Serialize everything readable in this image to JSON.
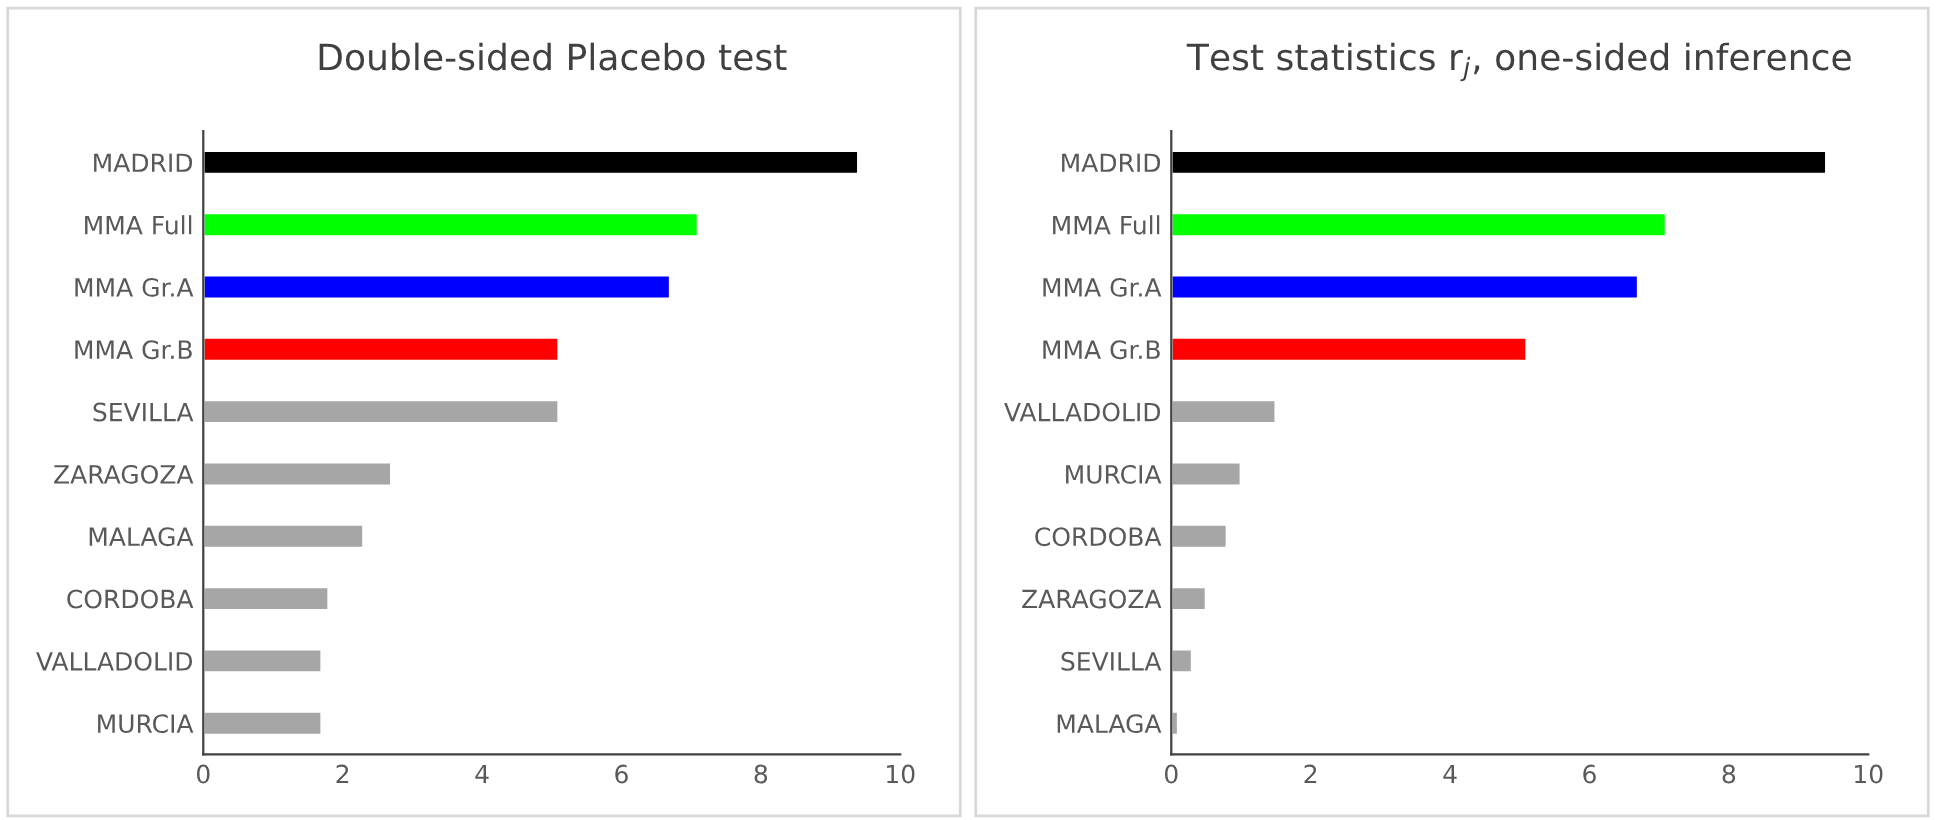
{
  "chart_data": [
    {
      "type": "bar",
      "orientation": "horizontal",
      "title": "Double-sided Placebo test",
      "categories": [
        "MADRID",
        "MMA Full",
        "MMA Gr.A",
        "MMA Gr.B",
        "SEVILLA",
        "ZARAGOZA",
        "MALAGA",
        "CORDOBA",
        "VALLADOLID",
        "MURCIA"
      ],
      "values": [
        9.4,
        7.1,
        6.7,
        5.1,
        5.1,
        2.7,
        2.3,
        1.8,
        1.7,
        1.7
      ],
      "colors": [
        "#000000",
        "#00ff00",
        "#0000ff",
        "#ff0000",
        "#a6a6a6",
        "#a6a6a6",
        "#a6a6a6",
        "#a6a6a6",
        "#a6a6a6",
        "#a6a6a6"
      ],
      "xlim": [
        0,
        10
      ],
      "xticks": [
        0,
        2,
        4,
        6,
        8,
        10
      ],
      "grid": false,
      "legend": false
    },
    {
      "type": "bar",
      "orientation": "horizontal",
      "title": "Test statistics r$_{j}$, one-sided inference",
      "categories": [
        "MADRID",
        "MMA Full",
        "MMA Gr.A",
        "MMA Gr.B",
        "VALLADOLID",
        "MURCIA",
        "CORDOBA",
        "ZARAGOZA",
        "SEVILLA",
        "MALAGA"
      ],
      "values": [
        9.4,
        7.1,
        6.7,
        5.1,
        1.5,
        1.0,
        0.8,
        0.5,
        0.3,
        0.1
      ],
      "colors": [
        "#000000",
        "#00ff00",
        "#0000ff",
        "#ff0000",
        "#a6a6a6",
        "#a6a6a6",
        "#a6a6a6",
        "#a6a6a6",
        "#a6a6a6",
        "#a6a6a6"
      ],
      "xlim": [
        0,
        10
      ],
      "xticks": [
        0,
        2,
        4,
        6,
        8,
        10
      ],
      "grid": false,
      "legend": false
    }
  ]
}
